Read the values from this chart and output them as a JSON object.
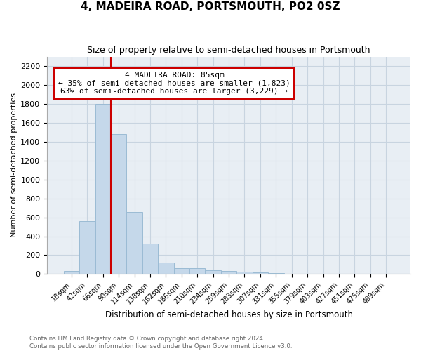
{
  "title": "4, MADEIRA ROAD, PORTSMOUTH, PO2 0SZ",
  "subtitle": "Size of property relative to semi-detached houses in Portsmouth",
  "xlabel": "Distribution of semi-detached houses by size in Portsmouth",
  "ylabel": "Number of semi-detached properties",
  "footer1": "Contains HM Land Registry data © Crown copyright and database right 2024.",
  "footer2": "Contains public sector information licensed under the Open Government Licence v3.0.",
  "property_label": "4 MADEIRA ROAD: 85sqm",
  "annotation_line1": "← 35% of semi-detached houses are smaller (1,823)",
  "annotation_line2": "63% of semi-detached houses are larger (3,229) →",
  "bar_color": "#c5d8ea",
  "bar_edge_color": "#9bbbd4",
  "redline_color": "#cc0000",
  "annotation_box_edgecolor": "#cc0000",
  "categories": [
    "18sqm",
    "42sqm",
    "66sqm",
    "90sqm",
    "114sqm",
    "138sqm",
    "162sqm",
    "186sqm",
    "210sqm",
    "234sqm",
    "259sqm",
    "283sqm",
    "307sqm",
    "331sqm",
    "355sqm",
    "379sqm",
    "403sqm",
    "427sqm",
    "451sqm",
    "475sqm",
    "499sqm"
  ],
  "values": [
    35,
    560,
    1800,
    1480,
    660,
    325,
    120,
    65,
    60,
    40,
    30,
    25,
    15,
    10,
    3,
    2,
    2,
    1,
    1,
    1,
    1
  ],
  "ylim": [
    0,
    2300
  ],
  "yticks": [
    0,
    200,
    400,
    600,
    800,
    1000,
    1200,
    1400,
    1600,
    1800,
    2000,
    2200
  ],
  "grid_color": "#c8d4e0",
  "bg_color": "#e8eef4",
  "redline_x": 3.0
}
